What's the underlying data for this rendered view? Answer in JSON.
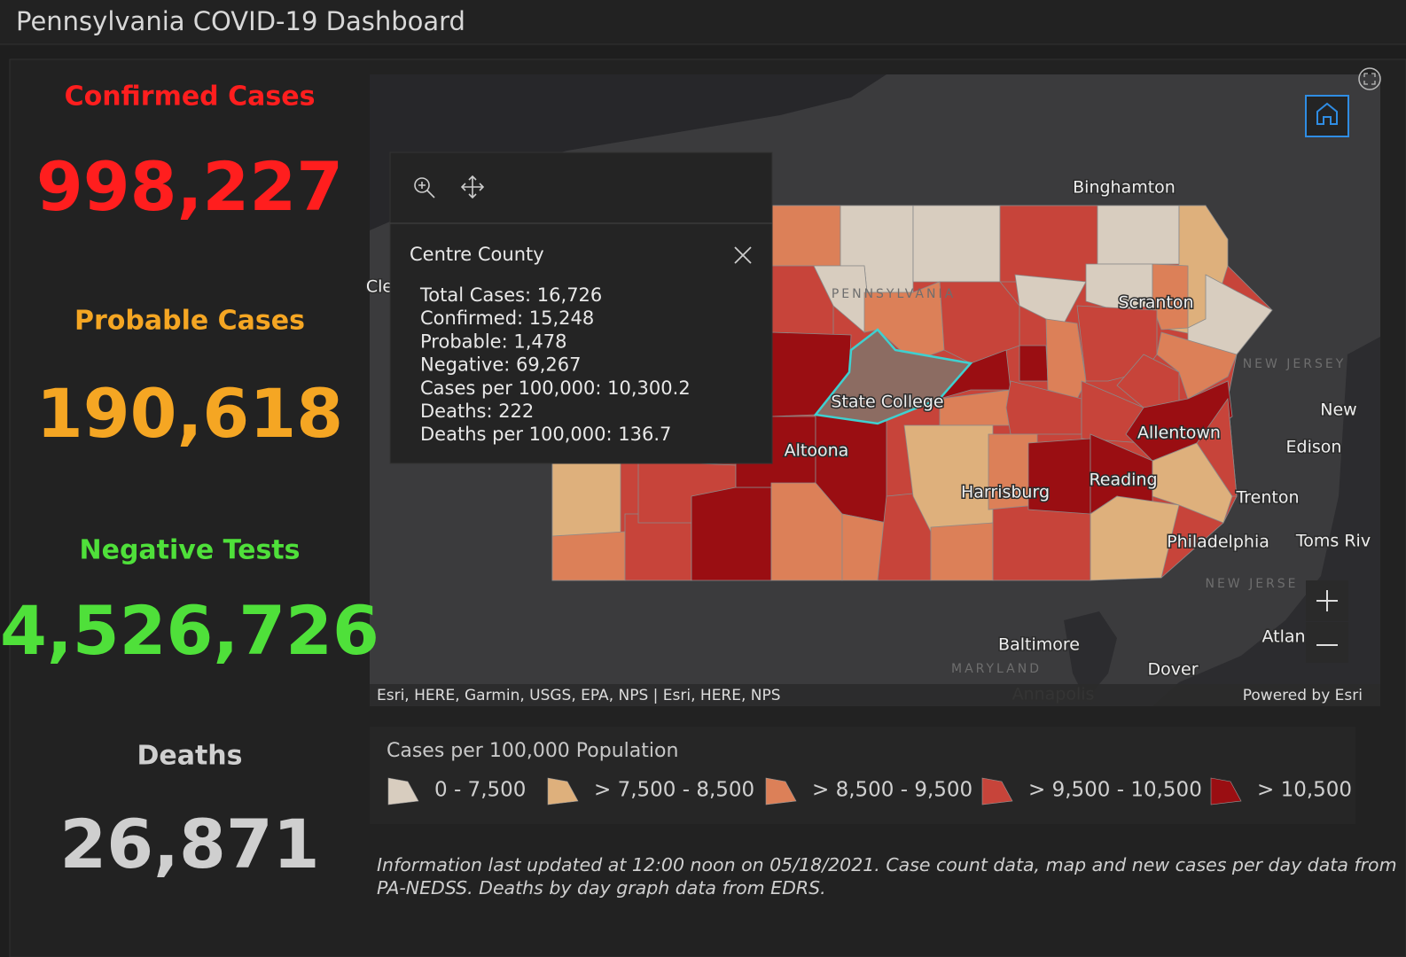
{
  "header": {
    "title": "Pennsylvania COVID-19 Dashboard"
  },
  "stats": [
    {
      "label": "Confirmed Cases",
      "value": "998,227",
      "color": "#ff1e1e"
    },
    {
      "label": "Probable Cases",
      "value": "190,618",
      "color": "#f5a623"
    },
    {
      "label": "Negative Tests",
      "value": "4,526,726",
      "color": "#4fe03a"
    },
    {
      "label": "Deaths",
      "value": "26,871",
      "color": "#cfcfcf"
    }
  ],
  "map": {
    "labels": [
      "Binghamton",
      "Scranton",
      "NEW JERSEY",
      "New",
      "Edison",
      "Allentown",
      "Reading",
      "Trenton",
      "Philadelphia",
      "Toms Riv",
      "NEW JERSE",
      "Atlan",
      "Baltimore",
      "MARYLAND",
      "Dover",
      "Annapolis",
      "State College",
      "Altoona",
      "Harrisburg",
      "Cle",
      "PENNSYLVANIA"
    ],
    "popup": {
      "title": "Centre County",
      "lines": [
        "Total Cases: 16,726",
        "Confirmed: 15,248",
        "Probable: 1,478",
        "Negative: 69,267",
        "Cases per 100,000: 10,300.2",
        "Deaths: 222",
        "Deaths per 100,000: 136.7"
      ]
    },
    "attribution": "Esri, HERE, Garmin, USGS, EPA, NPS | Esri, HERE, NPS",
    "powered_by": "Powered by Esri"
  },
  "legend": {
    "title": "Cases per 100,000 Population",
    "items": [
      {
        "label": "0 - 7,500",
        "color": "#d8cdbf"
      },
      {
        "label": "> 7,500 - 8,500",
        "color": "#deb07c"
      },
      {
        "label": "> 8,500 - 9,500",
        "color": "#dc8058"
      },
      {
        "label": "> 9,500 - 10,500",
        "color": "#c7443a"
      },
      {
        "label": "> 10,500",
        "color": "#9a0e12"
      }
    ]
  },
  "footer": {
    "note_lines": [
      "Information last updated at 12:00 noon on 05/18/2021. Case count data, map and new cases per day data from",
      "PA-NEDSS.  Deaths by day graph data from EDRS."
    ]
  }
}
